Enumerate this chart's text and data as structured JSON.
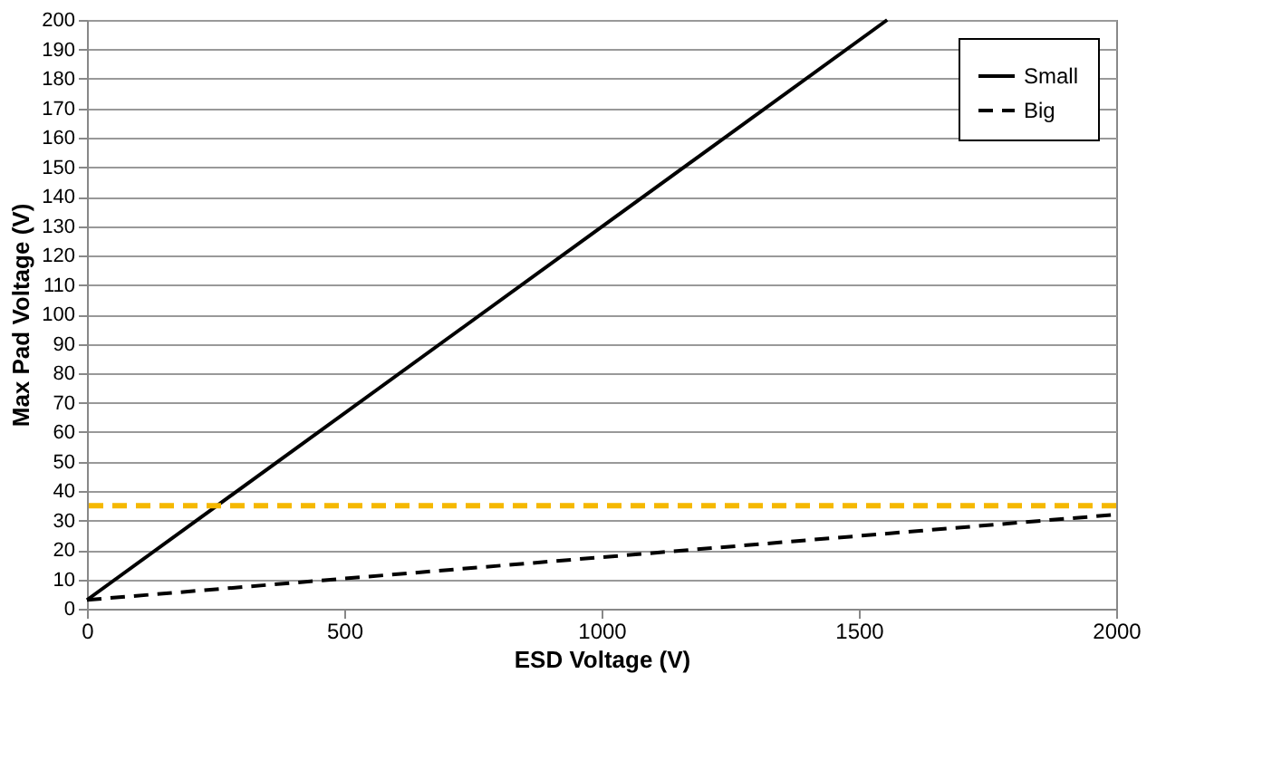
{
  "chart_data": {
    "type": "line",
    "xlabel": "ESD Voltage (V)",
    "ylabel": "Max Pad Voltage (V)",
    "series": [
      {
        "name": "Small",
        "color": "#000000",
        "line_style": "solid",
        "x": [
          0,
          1555
        ],
        "values": [
          3,
          200
        ]
      },
      {
        "name": "Big",
        "color": "#000000",
        "line_style": "dashed",
        "x": [
          0,
          2000
        ],
        "values": [
          3,
          32
        ]
      }
    ],
    "xlim": [
      0,
      2000
    ],
    "xticks": [
      0,
      500,
      1000,
      1500,
      2000
    ],
    "ylim": [
      0,
      200
    ],
    "yticks": [
      0,
      10,
      20,
      30,
      40,
      50,
      60,
      70,
      80,
      90,
      100,
      110,
      120,
      130,
      140,
      150,
      160,
      170,
      180,
      190,
      200
    ],
    "ref_lines": [
      {
        "axis": "y",
        "value": 35,
        "color": "#f5b800",
        "line_style": "dashed"
      }
    ],
    "grid": "y",
    "legend": "top right",
    "marker": "none"
  }
}
